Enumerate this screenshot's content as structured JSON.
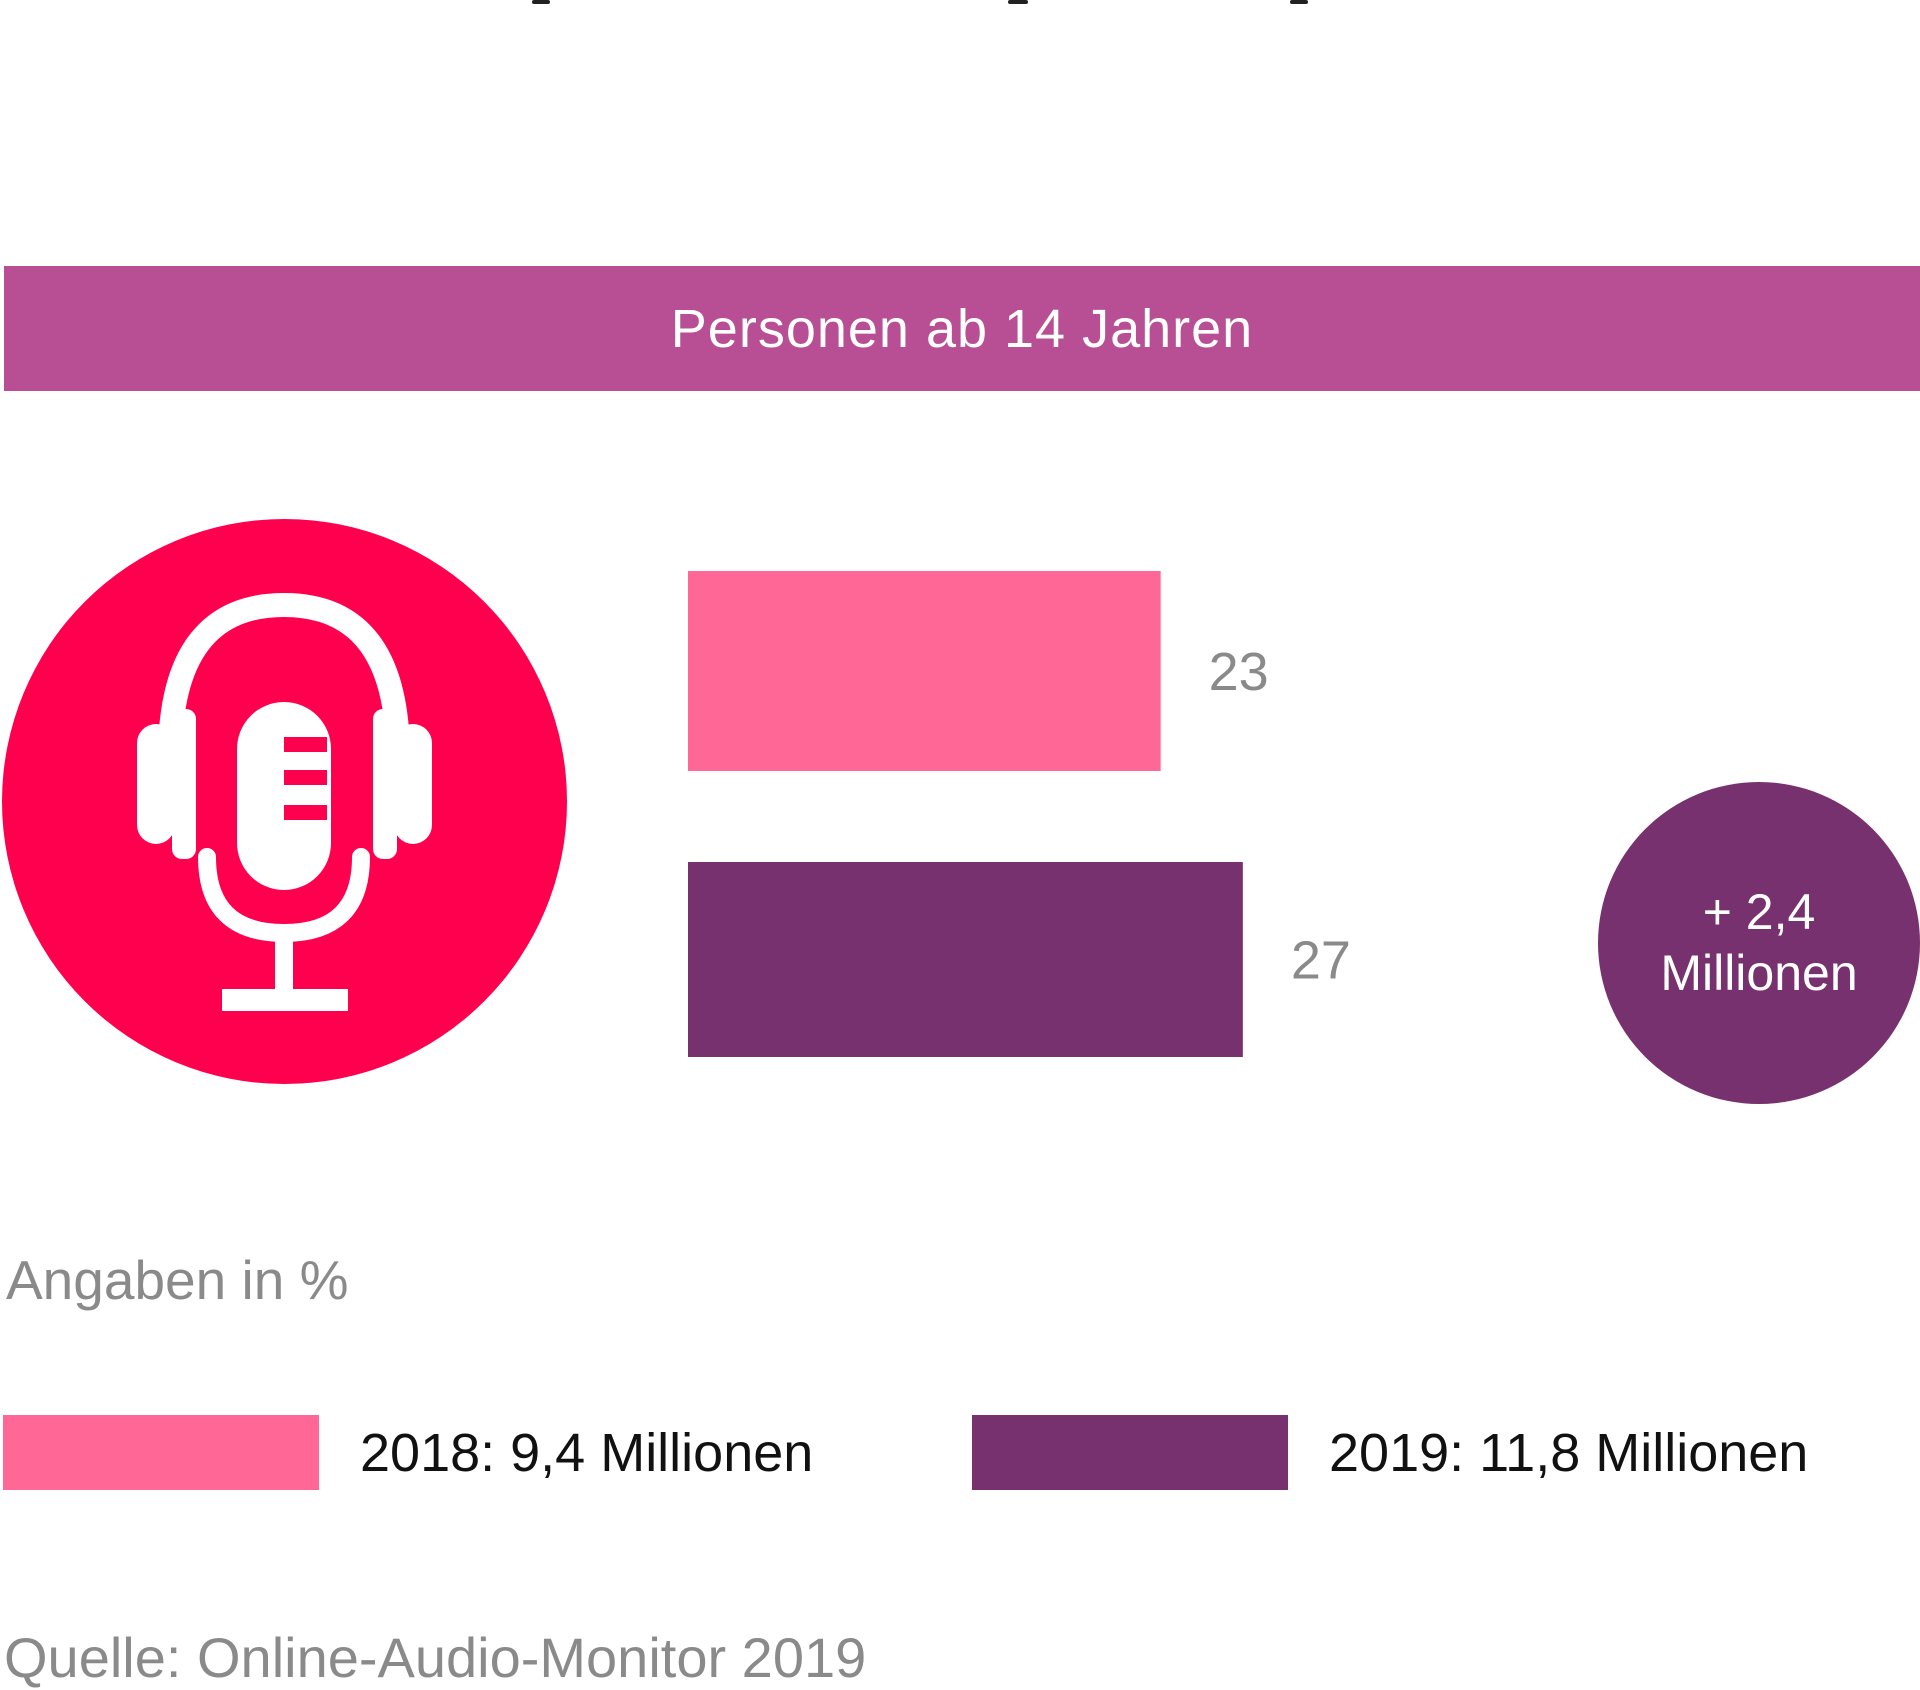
{
  "header": {
    "title": "Personen ab 14 Jahren"
  },
  "badge": {
    "line1": "+ 2,4",
    "line2": "Millionen"
  },
  "unit_label": "Angaben in %",
  "legend": [
    {
      "label": "2018: 9,4 Millionen",
      "color": "#ff6896"
    },
    {
      "label": "2019: 11,8 Millionen",
      "color": "#77316e"
    }
  ],
  "source": "Quelle: Online-Audio-Monitor 2019",
  "icon": {
    "name": "podcast-microphone-headphones-icon",
    "color": "#ff004f"
  },
  "chart_data": {
    "type": "bar",
    "orientation": "horizontal",
    "categories": [
      "2018",
      "2019"
    ],
    "values": [
      23,
      27
    ],
    "colors": [
      "#ff6896",
      "#77316e"
    ],
    "grid": false
  }
}
